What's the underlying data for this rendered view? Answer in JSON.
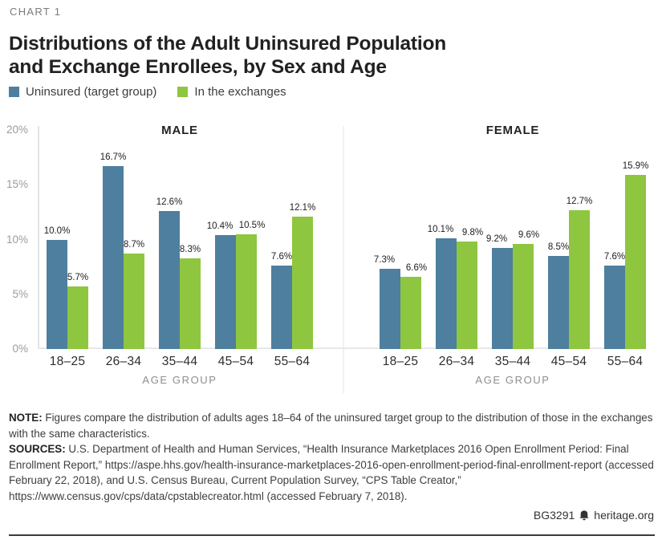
{
  "header": {
    "eyebrow": "CHART 1",
    "title": "Distributions of the Adult Uninsured Population\nand Exchange Enrollees, by Sex and Age"
  },
  "colors": {
    "uninsured": "#4e7f9e",
    "exchanges": "#8ec63f"
  },
  "legend": [
    {
      "label": "Uninsured (target group)",
      "color_key": "uninsured"
    },
    {
      "label": "In the exchanges",
      "color_key": "exchanges"
    }
  ],
  "chart_data": {
    "type": "bar",
    "categories": [
      "18–25",
      "26–34",
      "35–44",
      "45–54",
      "55–64"
    ],
    "xlabel": "AGE GROUP",
    "ylim": [
      0,
      20
    ],
    "y_ticks": [
      "20%",
      "15%",
      "10%",
      "5%",
      "0%"
    ],
    "grid": false,
    "legend_position": "top-left",
    "value_label_suffix": "%",
    "panels": [
      {
        "title": "MALE",
        "series": [
          {
            "name": "Uninsured (target group)",
            "color_key": "uninsured",
            "values": [
              10.0,
              16.7,
              12.6,
              10.4,
              7.6
            ]
          },
          {
            "name": "In the exchanges",
            "color_key": "exchanges",
            "values": [
              5.7,
              8.7,
              8.3,
              10.5,
              12.1
            ]
          }
        ]
      },
      {
        "title": "FEMALE",
        "series": [
          {
            "name": "Uninsured (target group)",
            "color_key": "uninsured",
            "values": [
              7.3,
              10.1,
              9.2,
              8.5,
              7.6
            ]
          },
          {
            "name": "In the exchanges",
            "color_key": "exchanges",
            "values": [
              6.6,
              9.8,
              9.6,
              12.7,
              15.9
            ]
          }
        ]
      }
    ]
  },
  "notes": {
    "note_label": "NOTE:",
    "note_text": "Figures compare the distribution of adults ages 18–64 of the uninsured target group to the distribution of those in the exchanges with the same characteristics.",
    "sources_label": "SOURCES:",
    "sources_text": "U.S. Department of Health and Human Services, “Health Insurance Marketplaces 2016 Open Enrollment Period: Final Enrollment Report,” https://aspe.hhs.gov/health-insurance-marketplaces-2016-open-enrollment-period-final-enrollment-report (accessed February 22, 2018), and U.S. Census Bureau, Current Population Survey, “CPS Table Creator,” https://www.census.gov/cps/data/cpstablecreator.html (accessed February 7, 2018)."
  },
  "footer": {
    "report_id": "BG3291",
    "site": "heritage.org",
    "icon": "liberty-bell-icon"
  }
}
